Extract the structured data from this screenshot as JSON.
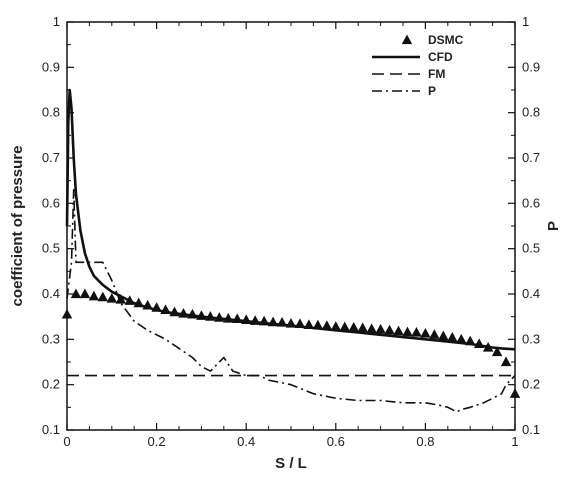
{
  "chart_data": {
    "type": "line",
    "xlabel": "S / L",
    "ylabel": "coefficient of pressure",
    "y2label": "P",
    "xlim": [
      0,
      1
    ],
    "ylim": [
      0.1,
      1
    ],
    "y2lim": [
      0.1,
      1
    ],
    "xticks": [
      "0",
      "0.2",
      "0.4",
      "0.6",
      "0.8",
      "1"
    ],
    "yticks": [
      "0.1",
      "0.2",
      "0.3",
      "0.4",
      "0.5",
      "0.6",
      "0.7",
      "0.8",
      "0.9",
      "1"
    ],
    "y2ticks": [
      "0.1",
      "0.2",
      "0.3",
      "0.4",
      "0.5",
      "0.6",
      "0.7",
      "0.8",
      "0.9",
      "1"
    ],
    "grid": false,
    "legend_position": "top-right",
    "series": [
      {
        "name": "DSMC",
        "style": "triangle-markers",
        "color": "#111111",
        "x": [
          0.0,
          0.02,
          0.04,
          0.06,
          0.08,
          0.1,
          0.12,
          0.14,
          0.16,
          0.18,
          0.2,
          0.22,
          0.24,
          0.26,
          0.28,
          0.3,
          0.32,
          0.34,
          0.36,
          0.38,
          0.4,
          0.42,
          0.44,
          0.46,
          0.48,
          0.5,
          0.52,
          0.54,
          0.56,
          0.58,
          0.6,
          0.62,
          0.64,
          0.66,
          0.68,
          0.7,
          0.72,
          0.74,
          0.76,
          0.78,
          0.8,
          0.82,
          0.84,
          0.86,
          0.88,
          0.9,
          0.92,
          0.94,
          0.96,
          0.98,
          1.0
        ],
        "y": [
          0.355,
          0.4,
          0.4,
          0.395,
          0.393,
          0.39,
          0.388,
          0.385,
          0.38,
          0.375,
          0.37,
          0.365,
          0.36,
          0.357,
          0.355,
          0.352,
          0.35,
          0.348,
          0.346,
          0.345,
          0.343,
          0.341,
          0.34,
          0.338,
          0.337,
          0.335,
          0.334,
          0.332,
          0.331,
          0.33,
          0.328,
          0.327,
          0.326,
          0.325,
          0.323,
          0.322,
          0.32,
          0.318,
          0.316,
          0.315,
          0.313,
          0.31,
          0.307,
          0.304,
          0.3,
          0.296,
          0.29,
          0.282,
          0.272,
          0.25,
          0.18
        ]
      },
      {
        "name": "CFD",
        "style": "solid",
        "color": "#111111",
        "x": [
          0.0,
          0.003,
          0.006,
          0.01,
          0.015,
          0.02,
          0.03,
          0.04,
          0.05,
          0.06,
          0.08,
          0.1,
          0.12,
          0.15,
          0.18,
          0.22,
          0.26,
          0.3,
          0.35,
          0.4,
          0.45,
          0.5,
          0.55,
          0.6,
          0.65,
          0.7,
          0.75,
          0.8,
          0.85,
          0.9,
          0.93,
          0.95,
          0.97,
          1.0
        ],
        "y": [
          0.55,
          0.78,
          0.85,
          0.81,
          0.7,
          0.62,
          0.54,
          0.49,
          0.46,
          0.44,
          0.42,
          0.405,
          0.395,
          0.38,
          0.37,
          0.36,
          0.355,
          0.35,
          0.345,
          0.34,
          0.335,
          0.33,
          0.325,
          0.32,
          0.315,
          0.31,
          0.305,
          0.3,
          0.295,
          0.29,
          0.285,
          0.282,
          0.28,
          0.278
        ]
      },
      {
        "name": "FM",
        "style": "dashed",
        "color": "#111111",
        "x": [
          0.0,
          1.0
        ],
        "y": [
          0.22,
          0.22
        ]
      },
      {
        "name": "P",
        "style": "dash-dot",
        "color": "#111111",
        "x": [
          0.0,
          0.01,
          0.015,
          0.02,
          0.05,
          0.08,
          0.1,
          0.12,
          0.15,
          0.18,
          0.2,
          0.22,
          0.25,
          0.28,
          0.3,
          0.32,
          0.35,
          0.37,
          0.4,
          0.43,
          0.45,
          0.5,
          0.55,
          0.6,
          0.65,
          0.7,
          0.75,
          0.8,
          0.83,
          0.85,
          0.87,
          0.88,
          0.9,
          0.93,
          0.95,
          0.97,
          0.98,
          1.0
        ],
        "y": [
          0.39,
          0.47,
          0.63,
          0.47,
          0.47,
          0.47,
          0.43,
          0.38,
          0.34,
          0.32,
          0.31,
          0.3,
          0.28,
          0.26,
          0.24,
          0.23,
          0.26,
          0.23,
          0.22,
          0.22,
          0.21,
          0.2,
          0.18,
          0.17,
          0.165,
          0.165,
          0.16,
          0.16,
          0.155,
          0.15,
          0.14,
          0.145,
          0.15,
          0.16,
          0.17,
          0.18,
          0.2,
          0.22
        ]
      }
    ]
  }
}
